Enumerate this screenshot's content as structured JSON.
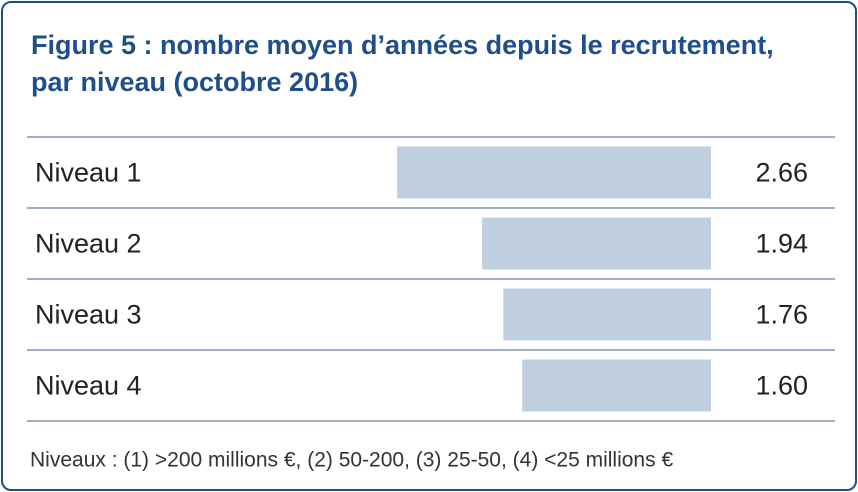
{
  "chart_data": {
    "type": "bar",
    "orientation": "horizontal",
    "title": "Figure 5 : nombre moyen d’années depuis le recrutement, par niveau (octobre 2016)",
    "categories": [
      "Niveau 1",
      "Niveau 2",
      "Niveau 3",
      "Niveau 4"
    ],
    "values": [
      2.66,
      1.94,
      1.76,
      1.6
    ],
    "value_labels": [
      "2.66",
      "1.94",
      "1.76",
      "1.60"
    ],
    "color": "#bfcfe0",
    "note": "Niveaux : (1) >200 millions €, (2) 50-200, (3) 25-50, (4) <25 millions €"
  }
}
